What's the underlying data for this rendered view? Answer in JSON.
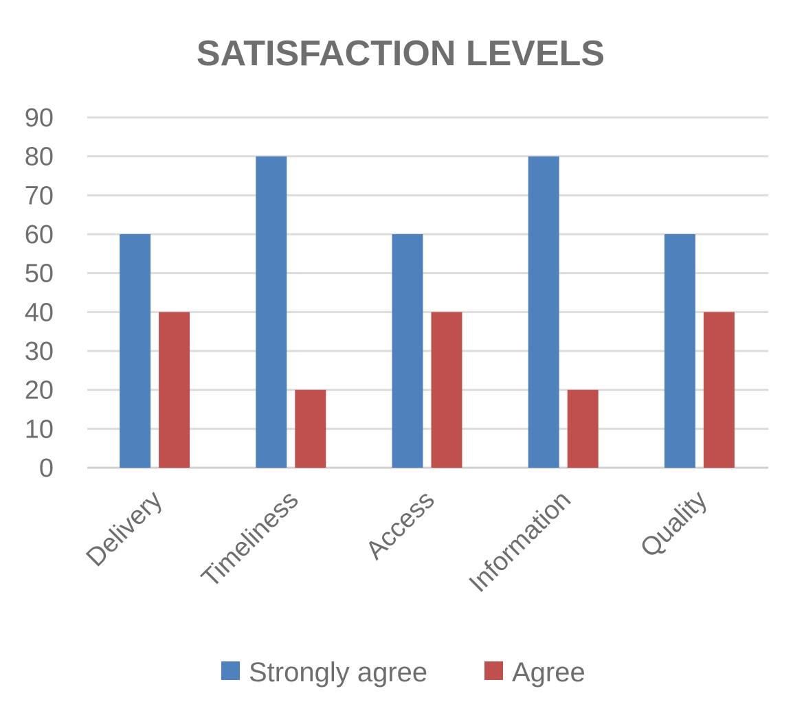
{
  "chart_data": {
    "type": "bar",
    "title": "SATISFACTION LEVELS",
    "xlabel": "",
    "ylabel": "",
    "categories": [
      "Delivery",
      "Timeliness",
      "Access",
      "Information",
      "Quality"
    ],
    "series": [
      {
        "name": "Strongly agree",
        "color": "#4F81BD",
        "values": [
          60,
          80,
          60,
          80,
          60
        ]
      },
      {
        "name": "Agree",
        "color": "#C0504D",
        "values": [
          40,
          20,
          40,
          20,
          40
        ]
      }
    ],
    "ylim": [
      0,
      90
    ],
    "yticks": [
      "0",
      "10",
      "20",
      "30",
      "40",
      "50",
      "60",
      "70",
      "80",
      "90"
    ],
    "grid": true,
    "legend": "bottom"
  }
}
